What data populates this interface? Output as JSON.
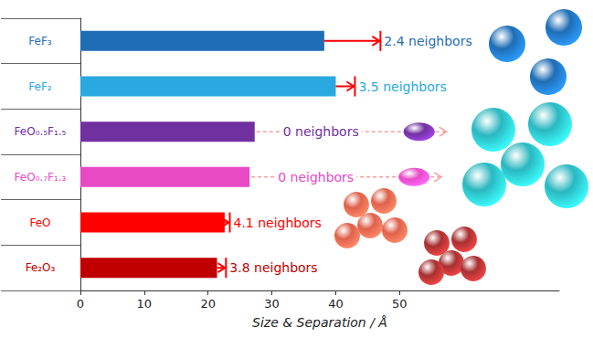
{
  "chart_data": {
    "type": "bar",
    "orientation": "horizontal",
    "categories": [
      "FeF₃",
      "FeF₂",
      "FeO₀.₅F₁.₅",
      "FeO₀.₇F₁.₃",
      "FeO",
      "Fe₂O₃"
    ],
    "values": [
      38.2,
      40.0,
      27.3,
      26.5,
      22.6,
      21.4
    ],
    "separation": [
      47.0,
      43.0,
      null,
      null,
      23.4,
      22.8
    ],
    "annotations": [
      "2.4 neighbors",
      "3.5 neighbors",
      "0 neighbors",
      "0 neighbors",
      "4.1 neighbors",
      "3.8 neighbors"
    ],
    "colors": [
      "#1f6db5",
      "#2aa9e0",
      "#7030a0",
      "#e84ac6",
      "#ff0000",
      "#c00000"
    ],
    "xlabel": "Size & Separation / Å",
    "xlim": [
      0,
      75
    ],
    "xticks": [
      0,
      10,
      20,
      30,
      40,
      50
    ]
  }
}
